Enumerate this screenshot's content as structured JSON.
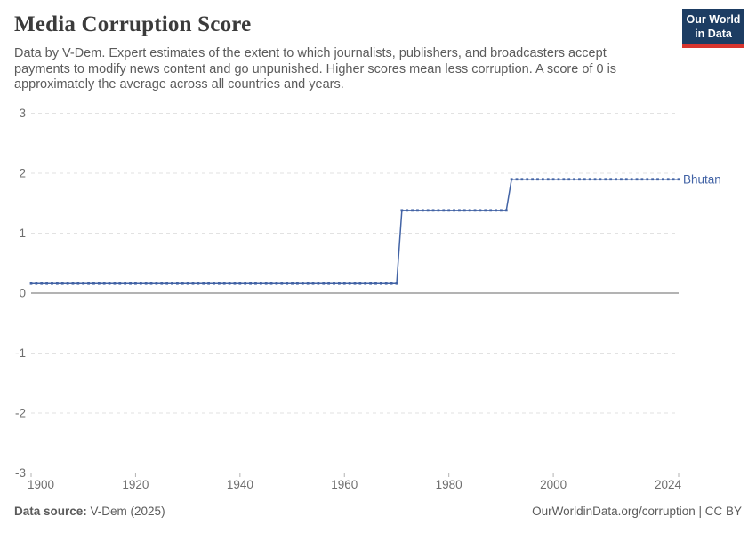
{
  "header": {
    "title": "Media Corruption Score",
    "subtitle": "Data by V-Dem. Expert estimates of the extent to which journalists, publishers, and broadcasters accept payments to modify news content and go unpunished. Higher scores mean less corruption. A score of 0 is approximately the average across all countries and years.",
    "logo": {
      "line1": "Our World",
      "line2": "in Data",
      "bg_color": "#1d3d63",
      "bar_color": "#d8352e"
    }
  },
  "chart_data": {
    "type": "line",
    "title": "Media Corruption Score",
    "xlabel": "",
    "ylabel": "",
    "xlim": [
      1900,
      2024
    ],
    "ylim": [
      -3,
      3
    ],
    "xticks": [
      1900,
      1920,
      1940,
      1960,
      1980,
      2000,
      2024
    ],
    "yticks": [
      3,
      2,
      1,
      0,
      -1,
      -2,
      -3
    ],
    "grid": "horizontal dashed gridlines, solid zero line",
    "legend_position": "end-of-line entity label",
    "series": [
      {
        "name": "Bhutan",
        "color": "#4263a5",
        "marker": "square",
        "steps": [
          {
            "from": 1900,
            "to": 1970,
            "value": 0.16
          },
          {
            "from": 1971,
            "to": 1991,
            "value": 1.38
          },
          {
            "from": 1992,
            "to": 2024,
            "value": 1.9
          }
        ]
      }
    ],
    "colors": {
      "grid": "#e2e2e2",
      "zero_line": "#a8a8a8",
      "tick": "#b3b3b3",
      "axis_text": "#6e6e6e"
    }
  },
  "footer": {
    "source_label": "Data source:",
    "source_value": " V-Dem (2025)",
    "credit": "OurWorldinData.org/corruption | CC BY"
  }
}
